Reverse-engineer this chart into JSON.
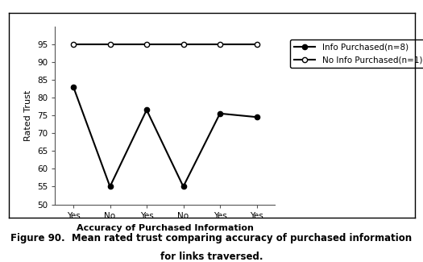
{
  "x_labels": [
    "Yes",
    "No",
    "Yes",
    "No",
    "Yes",
    "Yes"
  ],
  "x_positions": [
    0,
    1,
    2,
    3,
    4,
    5
  ],
  "series1_label": "Info Purchased(n=8)",
  "series1_values": [
    83,
    55,
    76.5,
    55,
    75.5,
    74.5
  ],
  "series1_color": "#000000",
  "series1_marker": "o",
  "series1_markerfacecolor": "#000000",
  "series2_label": "No Info Purchased(n=1)",
  "series2_values": [
    95,
    95,
    95,
    95,
    95,
    95
  ],
  "series2_color": "#000000",
  "series2_marker": "o",
  "series2_markerfacecolor": "#ffffff",
  "ylabel": "Rated Trust",
  "xlabel": "Accuracy of Purchased Information",
  "ylim": [
    50,
    100
  ],
  "yticks": [
    50,
    55,
    60,
    65,
    70,
    75,
    80,
    85,
    90,
    95
  ],
  "title_line1": "Figure 90.  Mean rated trust comparing accuracy of purchased information",
  "title_line2": "for links traversed.",
  "title_fontsize": 8.5,
  "axis_label_fontsize": 8,
  "tick_fontsize": 7.5,
  "legend_fontsize": 7.5,
  "background_color": "#ffffff",
  "figure_background": "#ffffff"
}
